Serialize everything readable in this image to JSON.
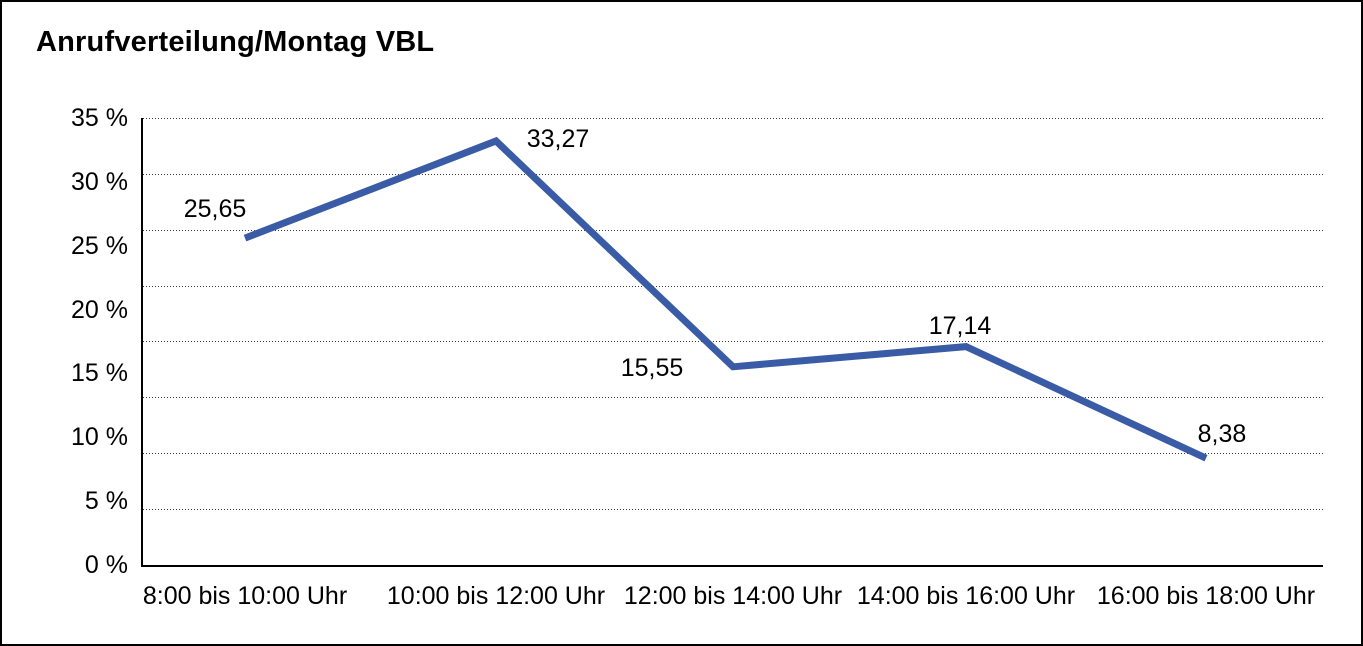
{
  "chart_data": {
    "type": "line",
    "title": "Anrufverteilung/Montag VBL",
    "categories": [
      "8:00 bis 10:00 Uhr",
      "10:00 bis 12:00 Uhr",
      "12:00 bis 14:00 Uhr",
      "14:00 bis 16:00 Uhr",
      "16:00 bis 18:00 Uhr"
    ],
    "series": [
      {
        "name": "Anrufverteilung Montag VBL",
        "values": [
          25.65,
          33.27,
          15.55,
          17.14,
          8.38
        ]
      }
    ],
    "point_labels": [
      "25,65",
      "33,27",
      "15,55",
      "17,14",
      "8,38"
    ],
    "y_ticks": [
      "35 %",
      "30 %",
      "25 %",
      "20 %",
      "15 %",
      "10 %",
      "5 %",
      "0 %"
    ],
    "ylim": [
      0,
      35
    ],
    "xlabel": "",
    "ylabel": "",
    "grid": "horizontal-dotted",
    "legend_position": "none",
    "line_color": "#3A5BA5",
    "axis_color": "#000000",
    "background_color": "#FFFFFF"
  }
}
